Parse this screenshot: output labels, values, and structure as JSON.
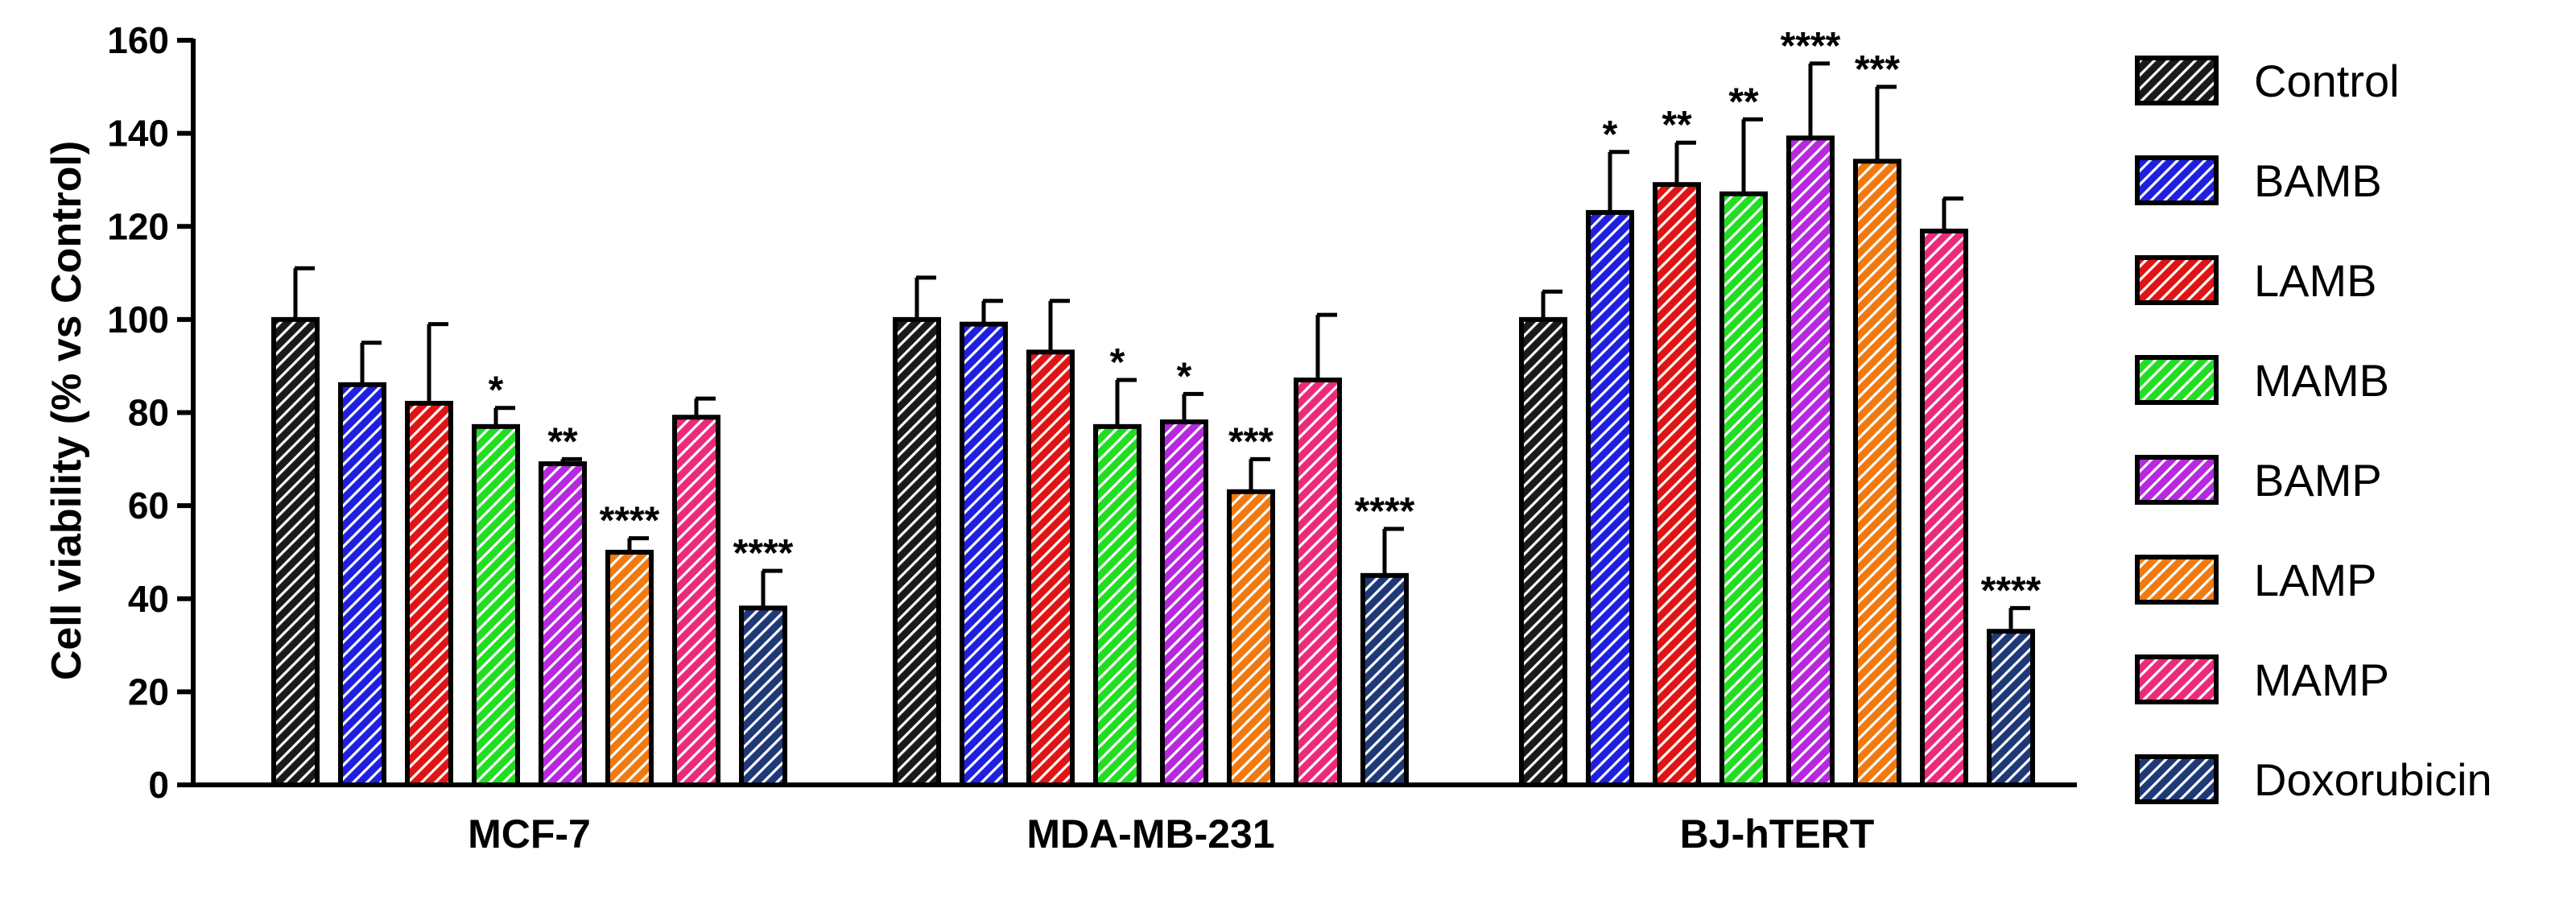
{
  "chart_data": {
    "type": "bar",
    "title": "",
    "xlabel": "",
    "ylabel": "Cell viability (% vs Control)",
    "ylim": [
      0,
      160
    ],
    "yticks": [
      0,
      20,
      40,
      60,
      80,
      100,
      120,
      140,
      160
    ],
    "grid": false,
    "legend_position": "right",
    "categories": [
      "MCF-7",
      "MDA-MB-231",
      "BJ-hTERT"
    ],
    "series": [
      {
        "name": "Control",
        "color": "#1a1a1a",
        "values": [
          100,
          100,
          100
        ],
        "errors": [
          11,
          9,
          6
        ],
        "significance": [
          "",
          "",
          ""
        ]
      },
      {
        "name": "BAMB",
        "color": "#1f1fe0",
        "values": [
          86,
          99,
          123
        ],
        "errors": [
          9,
          5,
          13
        ],
        "significance": [
          "",
          "",
          "*"
        ]
      },
      {
        "name": "LAMB",
        "color": "#e01414",
        "values": [
          82,
          93,
          129
        ],
        "errors": [
          17,
          11,
          9
        ],
        "significance": [
          "",
          "",
          "**"
        ]
      },
      {
        "name": "MAMB",
        "color": "#22dd22",
        "values": [
          77,
          77,
          127
        ],
        "errors": [
          4,
          10,
          16
        ],
        "significance": [
          "*",
          "*",
          "**"
        ]
      },
      {
        "name": "BAMP",
        "color": "#b629dd",
        "values": [
          69,
          78,
          139
        ],
        "errors": [
          1,
          6,
          16
        ],
        "significance": [
          "**",
          "*",
          "****"
        ]
      },
      {
        "name": "LAMP",
        "color": "#f07a10",
        "values": [
          50,
          63,
          134
        ],
        "errors": [
          3,
          7,
          16
        ],
        "significance": [
          "****",
          "***",
          "***"
        ]
      },
      {
        "name": "MAMP",
        "color": "#ec2a7c",
        "values": [
          79,
          87,
          119
        ],
        "errors": [
          4,
          14,
          7
        ],
        "significance": [
          "",
          "",
          ""
        ]
      },
      {
        "name": "Doxorubicin",
        "color": "#1f3877",
        "values": [
          38,
          45,
          33
        ],
        "errors": [
          8,
          10,
          5
        ],
        "significance": [
          "****",
          "****",
          "****"
        ]
      }
    ]
  }
}
